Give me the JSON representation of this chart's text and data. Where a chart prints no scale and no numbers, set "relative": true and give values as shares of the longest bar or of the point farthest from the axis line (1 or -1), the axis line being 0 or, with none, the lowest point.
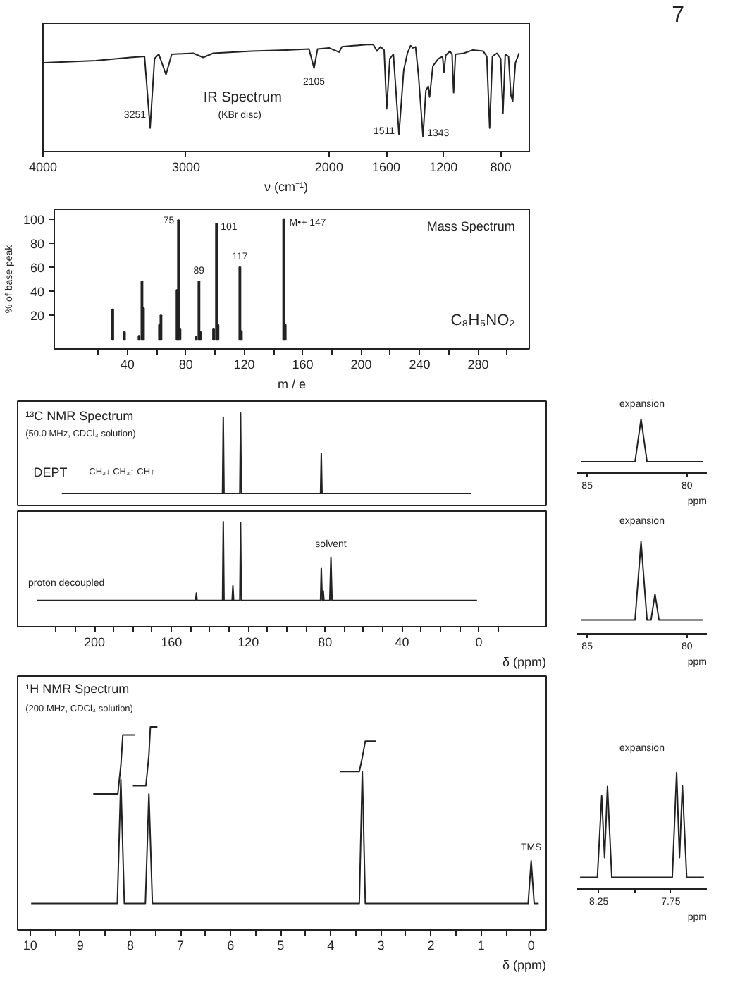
{
  "chart_data": [
    {
      "type": "line",
      "relative": true,
      "title": "IR Spectrum",
      "subtitle": "(KBr disc)",
      "xlabel": "ν (cm⁻¹)",
      "xlim": [
        4000,
        600
      ],
      "xticks": [
        4000,
        3000,
        2000,
        1600,
        1200,
        800
      ],
      "annotations": [
        {
          "text": "3251",
          "x": 3251,
          "y": 0.22
        },
        {
          "text": "2105",
          "x": 2105,
          "y": 0.78
        },
        {
          "text": "1511",
          "x": 1511,
          "y": 0.16
        },
        {
          "text": "1343",
          "x": 1343,
          "y": 0.14
        },
        "7"
      ],
      "series": [
        {
          "color": "#222222",
          "x": [
            3990,
            3630,
            3390,
            3290,
            3251,
            3220,
            3190,
            3140,
            3100,
            2950,
            2880,
            2810,
            2540,
            2300,
            2140,
            2105,
            2080,
            2000,
            1930,
            1910,
            1830,
            1735,
            1690,
            1665,
            1640,
            1615,
            1597,
            1575,
            1550,
            1511,
            1478,
            1452,
            1430,
            1413,
            1395,
            1375,
            1343,
            1323,
            1306,
            1297,
            1274,
            1235,
            1206,
            1197,
            1184,
            1155,
            1140,
            1129,
            1116,
            1058,
            994,
            923,
            897,
            877,
            858,
            826,
            800,
            784,
            768,
            745,
            729,
            716,
            697,
            671
          ],
          "values": [
            0.83,
            0.85,
            0.88,
            0.89,
            0.22,
            0.87,
            0.91,
            0.72,
            0.91,
            0.92,
            0.88,
            0.92,
            0.94,
            0.95,
            0.96,
            0.78,
            0.96,
            0.97,
            0.93,
            0.98,
            0.99,
            1.0,
            1.0,
            0.94,
            0.98,
            0.95,
            0.4,
            0.87,
            0.91,
            0.16,
            0.76,
            0.92,
            0.99,
            0.97,
            0.98,
            0.72,
            0.14,
            0.57,
            0.61,
            0.51,
            0.8,
            0.87,
            0.89,
            0.74,
            0.9,
            0.94,
            0.91,
            0.55,
            0.91,
            0.92,
            0.95,
            0.94,
            0.89,
            0.22,
            0.89,
            0.92,
            0.87,
            0.36,
            0.91,
            0.89,
            0.53,
            0.47,
            0.83,
            0.92
          ]
        }
      ]
    },
    {
      "type": "bar",
      "title": "Mass Spectrum",
      "xlabel": "m / e",
      "ylabel": "% of base peak",
      "xlim": [
        -10,
        315
      ],
      "ylim": [
        -8,
        108
      ],
      "xticks": [
        {
          "value": 20,
          "label": null
        },
        40,
        {
          "value": 60,
          "label": null
        },
        80,
        {
          "value": 100,
          "label": null
        },
        120,
        {
          "value": 140,
          "label": null
        },
        160,
        {
          "value": 180,
          "label": null
        },
        200,
        {
          "value": 220,
          "label": null
        },
        240,
        {
          "value": 260,
          "label": null
        },
        280,
        {
          "value": 300,
          "label": null
        }
      ],
      "yticks": [
        20,
        40,
        60,
        80,
        100
      ],
      "color": "#222222",
      "x": [
        30,
        38,
        48,
        50,
        51,
        62,
        63,
        74,
        75,
        76,
        87,
        89,
        90,
        99,
        101,
        102,
        117,
        118,
        147,
        148
      ],
      "values": [
        25,
        6,
        3,
        48,
        26,
        12,
        20,
        41,
        99,
        9,
        2,
        48,
        6,
        9,
        96,
        12,
        60,
        7,
        100,
        12
      ],
      "annotations": [
        {
          "text": "75",
          "x": 75,
          "y": 99
        },
        {
          "text": "101",
          "x": 101,
          "y": 96
        },
        {
          "text": "117",
          "x": 117,
          "y": 60
        },
        {
          "text": "89",
          "x": 89,
          "y": 48
        },
        {
          "text": "M•+ 147",
          "x": 147,
          "y": 100
        },
        "C₈H₅NO₂"
      ]
    },
    {
      "type": "line",
      "relative": true,
      "title": "¹³C NMR Spectrum",
      "subtitle": "(50.0 MHz, CDCl₃ solution)",
      "xlim": [
        240,
        -35
      ],
      "tick_labels": false,
      "annotations": [
        "CH₂↓ CH₃↑ CH↑"
      ],
      "series": [
        {
          "name": "DEPT",
          "color": "#222222",
          "x": [
            217,
            133.4,
            133,
            132.6,
            124.4,
            124,
            123.6,
            82.4,
            82,
            81.6,
            4
          ],
          "values": [
            0,
            0,
            0.95,
            0,
            0,
            1,
            0,
            0,
            0.5,
            0,
            0
          ]
        }
      ]
    },
    {
      "type": "line",
      "relative": true,
      "title": "expansion",
      "xlabel": "ppm",
      "xlim": [
        85.5,
        79
      ],
      "xticks": [
        85,
        80
      ],
      "series": [
        {
          "color": "#222222",
          "x": [
            85.3,
            82.6,
            82.3,
            82.0,
            79.2
          ],
          "values": [
            0.21,
            0.21,
            1,
            0.21,
            0.21
          ]
        }
      ]
    },
    {
      "type": "line",
      "relative": true,
      "xlabel": "δ (ppm)",
      "xlim": [
        240,
        -35
      ],
      "xticks": [
        {
          "value": 220,
          "label": null
        },
        {
          "value": 210,
          "label": null
        },
        200,
        {
          "value": 190,
          "label": null
        },
        {
          "value": 180,
          "label": null
        },
        {
          "value": 170,
          "label": null
        },
        160,
        {
          "value": 150,
          "label": null
        },
        {
          "value": 140,
          "label": null
        },
        {
          "value": 130,
          "label": null
        },
        120,
        {
          "value": 110,
          "label": null
        },
        {
          "value": 100,
          "label": null
        },
        {
          "value": 90,
          "label": null
        },
        80,
        {
          "value": 70,
          "label": null
        },
        {
          "value": 60,
          "label": null
        },
        {
          "value": 50,
          "label": null
        },
        40,
        {
          "value": 30,
          "label": null
        },
        {
          "value": 20,
          "label": null
        },
        {
          "value": 10,
          "label": null
        },
        0,
        {
          "value": -10,
          "label": null
        }
      ],
      "annotations": [
        {
          "text": "solvent",
          "x": 77,
          "y": 0.66
        }
      ],
      "series": [
        {
          "name": "proton decoupled",
          "color": "#222222",
          "x": [
            230,
            147.4,
            147,
            146.6,
            133.4,
            133,
            132.6,
            128.4,
            128,
            127.6,
            124.4,
            124,
            123.6,
            82.4,
            82,
            81.5,
            81,
            80.6,
            77.6,
            77,
            76.4,
            1
          ],
          "values": [
            0.25,
            0.25,
            0.32,
            0.25,
            0.25,
            1,
            0.25,
            0.25,
            0.39,
            0.25,
            0.25,
            0.99,
            0.25,
            0.25,
            0.56,
            0.25,
            0.34,
            0.25,
            0.25,
            0.66,
            0.25,
            0.25
          ]
        }
      ]
    },
    {
      "type": "line",
      "relative": true,
      "title": "expansion",
      "xlabel": "ppm",
      "xlim": [
        85.5,
        79
      ],
      "xticks": [
        85,
        80
      ],
      "series": [
        {
          "color": "#222222",
          "x": [
            85.3,
            82.6,
            82.3,
            82.0,
            81.8,
            81.6,
            81.4,
            79.2
          ],
          "values": [
            0.15,
            0.15,
            1,
            0.15,
            0.15,
            0.43,
            0.15,
            0.15
          ]
        }
      ]
    },
    {
      "type": "line",
      "relative": true,
      "title": "¹H NMR Spectrum",
      "subtitle": "(200 MHz, CDCl₃ solution)",
      "xlabel": "δ (ppm)",
      "xlim": [
        10.25,
        -0.3
      ],
      "xticks": [
        10,
        {
          "value": 9.5,
          "label": null
        },
        9,
        {
          "value": 8.5,
          "label": null
        },
        8,
        {
          "value": 7.5,
          "label": null
        },
        7,
        {
          "value": 6.5,
          "label": null
        },
        6,
        {
          "value": 5.5,
          "label": null
        },
        5,
        {
          "value": 4.5,
          "label": null
        },
        4,
        {
          "value": 3.5,
          "label": null
        },
        3,
        {
          "value": 2.5,
          "label": null
        },
        2,
        {
          "value": 1.5,
          "label": null
        },
        1,
        {
          "value": 0.5,
          "label": null
        },
        0
      ],
      "annotations": [
        {
          "text": "TMS",
          "x": 0,
          "y": 0.34
        }
      ],
      "series": [
        {
          "color": "#222222",
          "x": [
            9.98,
            8.26,
            8.19,
            8.12,
            7.7,
            7.63,
            7.56,
            3.43,
            3.37,
            3.31,
            0.06,
            0,
            -0.06,
            -0.15
          ],
          "values": [
            0.13,
            0.13,
            0.74,
            0.13,
            0.13,
            0.67,
            0.13,
            0.13,
            0.78,
            0.13,
            0.13,
            0.34,
            0.13,
            0.13
          ]
        },
        {
          "color": "#222222",
          "x": [
            8.74,
            8.25,
            8.19,
            8.15,
            7.9
          ],
          "values": [
            0.67,
            0.67,
            0.81,
            0.96,
            0.96
          ]
        },
        {
          "color": "#222222",
          "x": [
            7.95,
            7.69,
            7.63,
            7.6,
            7.46
          ],
          "values": [
            0.71,
            0.71,
            0.86,
            1.0,
            1.0
          ]
        },
        {
          "color": "#222222",
          "x": [
            3.81,
            3.43,
            3.37,
            3.31,
            3.1
          ],
          "values": [
            0.78,
            0.78,
            0.85,
            0.93,
            0.93
          ]
        }
      ]
    },
    {
      "type": "line",
      "relative": true,
      "title": "expansion",
      "xlabel": "ppm",
      "xlim": [
        8.4,
        7.5
      ],
      "xticks": [
        8.25,
        {
          "value": 8.0,
          "label": null
        },
        7.75
      ],
      "series": [
        {
          "color": "#222222",
          "x": [
            8.38,
            8.26,
            8.23,
            8.21,
            8.19,
            8.16,
            7.74,
            7.71,
            7.69,
            7.67,
            7.64,
            7.52
          ],
          "values": [
            0.1,
            0.1,
            0.8,
            0.27,
            0.88,
            0.1,
            0.1,
            1,
            0.27,
            0.89,
            0.1,
            0.1
          ]
        }
      ]
    }
  ]
}
